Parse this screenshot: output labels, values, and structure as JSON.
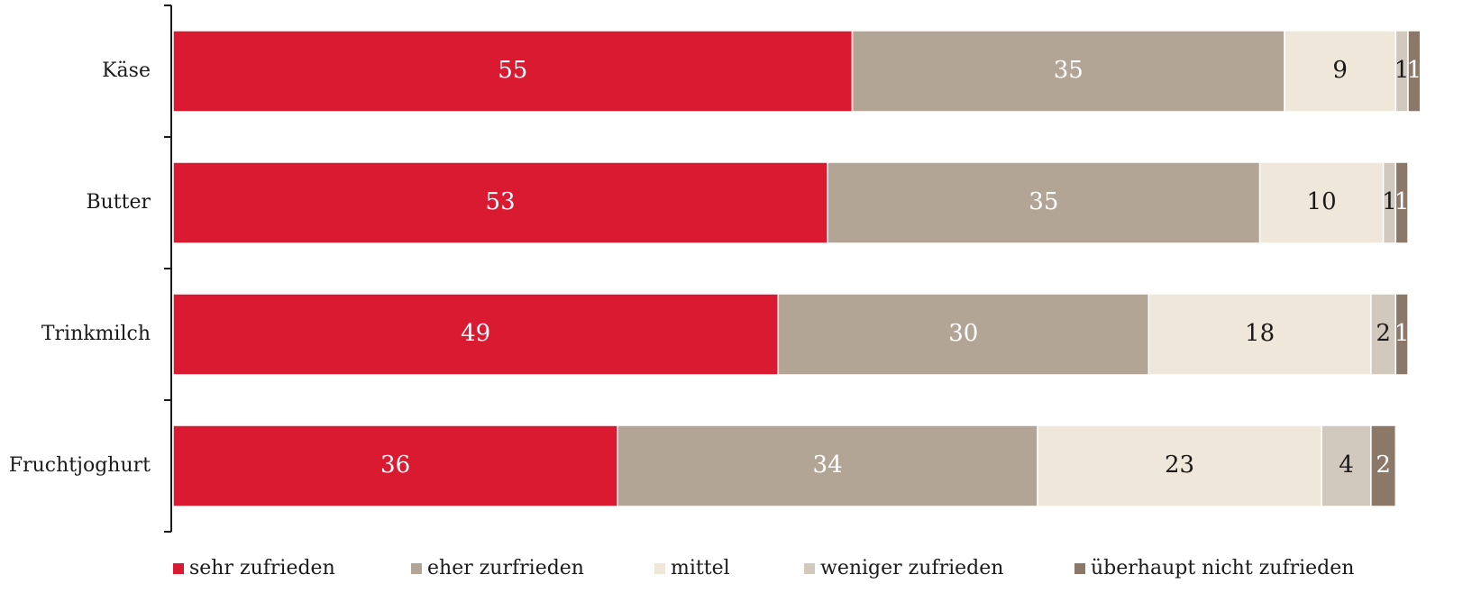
{
  "chart_data": {
    "type": "bar",
    "orientation": "horizontal",
    "stacked": true,
    "categories": [
      "Käse",
      "Butter",
      "Trinkmilch",
      "Fruchtjoghurt"
    ],
    "series": [
      {
        "name": "sehr zufrieden",
        "color": "#d91a31",
        "label_color": "#ffffff",
        "values": [
          55,
          53,
          49,
          36
        ]
      },
      {
        "name": "eher zurfrieden",
        "color": "#b3a595",
        "label_color": "#ffffff",
        "values": [
          35,
          35,
          30,
          34
        ]
      },
      {
        "name": "mittel",
        "color": "#efe7da",
        "label_color": "#1a1a1a",
        "values": [
          9,
          10,
          18,
          23
        ]
      },
      {
        "name": "weniger zufrieden",
        "color": "#d1c8be",
        "label_color": "#1a1a1a",
        "values": [
          1,
          1,
          2,
          4
        ]
      },
      {
        "name": "überhaupt nicht zufrieden",
        "color": "#8b7868",
        "label_color": "#ffffff",
        "values": [
          1,
          1,
          1,
          2
        ]
      }
    ],
    "xlim": [
      0,
      100
    ],
    "grid": false,
    "legend_position": "bottom"
  }
}
